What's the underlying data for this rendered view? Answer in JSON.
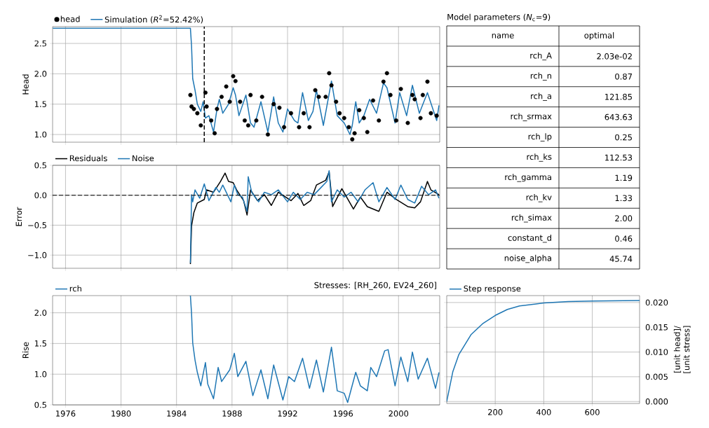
{
  "chart_data": [
    {
      "type": "line",
      "ylabel": "Head",
      "xlim": [
        "1975-01-26",
        "2002-12-20"
      ],
      "ylim": [
        0.873,
        2.777
      ],
      "xticks": [
        "1976",
        "1980",
        "1984",
        "1988",
        "1992",
        "1996",
        "2000"
      ],
      "yticks": [
        {
          "value": 1.0,
          "label": "1.0"
        },
        1.5,
        {
          "value": 2.0,
          "label": "2.0"
        },
        2.5
      ],
      "tick_labels": "y",
      "grid": true,
      "legend": "top left",
      "ref_lines": [
        {
          "axis": "x",
          "value": "1986-01",
          "color": "#000000",
          "line_style": "dashed"
        }
      ],
      "series": [
        {
          "name": "head",
          "type": "scatter",
          "color": "#000000",
          "x": [
            "1985-01",
            "1985-02",
            "1985-04",
            "1985-07",
            "1985-10",
            "1986-02",
            "1986-03",
            "1986-07",
            "1986-10",
            "1986-12",
            "1987-04",
            "1987-08",
            "1987-11",
            "1988-02",
            "1988-04",
            "1988-08",
            "1988-12",
            "1989-03",
            "1989-05",
            "1989-10",
            "1990-03",
            "1990-08",
            "1991-01",
            "1991-06",
            "1991-10",
            "1992-04",
            "1992-11",
            "1993-03",
            "1993-08",
            "1994-01",
            "1994-04",
            "1994-10",
            "1995-01",
            "1995-03",
            "1995-07",
            "1995-10",
            "1996-02",
            "1996-06",
            "1996-09",
            "1996-11",
            "1997-03",
            "1997-07",
            "1997-10",
            "1998-03",
            "1998-08",
            "1998-12",
            "1999-03",
            "1999-06",
            "1999-11",
            "2000-03",
            "2000-09",
            "2001-01",
            "2001-03",
            "2001-08",
            "2001-10",
            "2002-02",
            "2002-05",
            "2002-10"
          ],
          "values": [
            1.65,
            1.46,
            1.42,
            1.35,
            1.15,
            1.69,
            1.46,
            1.23,
            1.02,
            1.42,
            1.62,
            1.79,
            1.54,
            1.96,
            1.88,
            1.54,
            1.23,
            1.15,
            1.65,
            1.23,
            1.62,
            1.0,
            1.5,
            1.44,
            1.12,
            1.35,
            1.12,
            1.35,
            1.12,
            1.73,
            1.62,
            1.62,
            2.01,
            1.81,
            1.54,
            1.35,
            1.27,
            1.12,
            0.92,
            1.02,
            1.4,
            1.27,
            1.04,
            1.56,
            1.23,
            1.87,
            2.01,
            1.65,
            1.23,
            1.75,
            1.19,
            1.65,
            1.58,
            1.27,
            1.65,
            1.87,
            1.35,
            1.31
          ]
        },
        {
          "name": "Simulation (*R*$^{2}$=52.42%)",
          "color": "#1f77b4",
          "x": [
            "1975-02",
            "1985-01",
            "1985-02",
            "1985-03",
            "1985-05",
            "1985-07",
            "1985-10",
            "1985-12",
            "1986-02",
            "1986-05",
            "1986-09",
            "1986-12",
            "1987-02",
            "1987-05",
            "1987-10",
            "1988-02",
            "1988-04",
            "1988-07",
            "1989-01",
            "1989-05",
            "1989-08",
            "1990-02",
            "1990-08",
            "1991-01",
            "1991-05",
            "1991-09",
            "1992-01",
            "1992-07",
            "1992-10",
            "1993-02",
            "1993-07",
            "1993-11",
            "1994-02",
            "1994-08",
            "1995-03",
            "1995-08",
            "1996-02",
            "1996-07",
            "1996-09",
            "1996-12",
            "1997-03",
            "1997-07",
            "1997-12",
            "1998-06",
            "1998-12",
            "1999-03",
            "1999-10",
            "2000-02",
            "2000-08",
            "2001-01",
            "2001-07",
            "2002-02",
            "2002-10",
            "2002-12"
          ],
          "values": [
            2.75,
            2.75,
            2.46,
            1.92,
            1.73,
            1.5,
            1.38,
            1.54,
            1.27,
            1.31,
            1.04,
            1.42,
            1.58,
            1.35,
            1.5,
            1.77,
            1.65,
            1.31,
            1.65,
            1.19,
            1.12,
            1.54,
            1.04,
            1.62,
            1.19,
            1.04,
            1.42,
            1.23,
            1.19,
            1.69,
            1.23,
            1.38,
            1.73,
            1.15,
            1.88,
            1.31,
            1.19,
            1.0,
            1.15,
            1.54,
            1.19,
            1.31,
            1.58,
            1.35,
            1.85,
            1.77,
            1.19,
            1.69,
            1.31,
            1.81,
            1.35,
            1.69,
            1.23,
            1.48
          ]
        }
      ]
    },
    {
      "type": "other",
      "title": "Model parameters (*N*$_{c}$=9)",
      "annotations": [
        "name",
        "optimal"
      ],
      "categories": [
        "rch_A",
        "rch_n",
        "rch_a",
        "rch_srmax",
        "rch_lp",
        "rch_ks",
        "rch_gamma",
        "rch_kv",
        "rch_simax",
        "constant_d",
        "noise_alpha"
      ],
      "value_labels": [
        "2.03e-02",
        "0.87",
        "121.85",
        "643.63",
        "0.25",
        "112.53",
        "1.19",
        "1.33",
        "2.00",
        "0.46",
        "45.74"
      ]
    },
    {
      "type": "line",
      "ylabel": "Error",
      "xlim": [
        "1975-01-26",
        "2002-12-20"
      ],
      "ylim": [
        -1.22,
        0.5
      ],
      "xticks": [
        "1976",
        "1980",
        "1984",
        "1988",
        "1992",
        "1996",
        "2000"
      ],
      "yticks": [
        {
          "value": -1.0,
          "label": "−1.0"
        },
        {
          "value": -0.5,
          "label": "−0.5"
        },
        {
          "value": 0.0,
          "label": "0.0"
        },
        0.5
      ],
      "tick_labels": "y",
      "grid": true,
      "legend": "top left",
      "ref_lines": [
        {
          "axis": "y",
          "value": 0,
          "color": "#000000",
          "line_style": "dashed"
        }
      ],
      "series": [
        {
          "name": "Residuals",
          "color": "#000000",
          "x": [
            "1985-01",
            "1985-02",
            "1985-04",
            "1985-07",
            "1986-01",
            "1986-03",
            "1986-09",
            "1987-03",
            "1987-07",
            "1987-10",
            "1988-02",
            "1988-05",
            "1988-11",
            "1989-02",
            "1989-05",
            "1989-11",
            "1990-05",
            "1990-11",
            "1991-05",
            "1992-04",
            "1992-10",
            "1993-03",
            "1993-09",
            "1994-02",
            "1994-10",
            "1995-01",
            "1995-04",
            "1995-12",
            "1996-10",
            "1997-04",
            "1997-10",
            "1998-08",
            "1999-03",
            "1999-11",
            "2000-09",
            "2001-03",
            "2001-08",
            "2002-02",
            "2002-05",
            "2002-12"
          ],
          "values": [
            -1.15,
            -0.51,
            -0.29,
            -0.13,
            -0.07,
            0.09,
            0.05,
            0.23,
            0.37,
            0.23,
            0.21,
            0.09,
            -0.09,
            -0.33,
            0.09,
            -0.09,
            0.01,
            -0.17,
            0.05,
            -0.09,
            0.03,
            -0.17,
            -0.09,
            0.17,
            0.25,
            0.39,
            -0.19,
            0.11,
            -0.23,
            -0.03,
            -0.19,
            -0.27,
            0.05,
            -0.07,
            -0.19,
            -0.21,
            -0.11,
            0.23,
            0.09,
            0.01
          ]
        },
        {
          "name": "Noise",
          "color": "#1f77b4",
          "x": [
            "1985-01",
            "1985-02",
            "1985-03",
            "1985-05",
            "1985-09",
            "1986-01",
            "1986-05",
            "1986-11",
            "1987-02",
            "1987-05",
            "1987-09",
            "1987-12",
            "1988-03",
            "1988-06",
            "1988-10",
            "1989-02",
            "1989-03",
            "1989-06",
            "1989-12",
            "1990-05",
            "1990-11",
            "1991-05",
            "1992-01",
            "1992-06",
            "1992-12",
            "1993-06",
            "1993-12",
            "1994-06",
            "1994-11",
            "1995-01",
            "1995-03",
            "1995-08",
            "1996-02",
            "1996-08",
            "1997-02",
            "1997-08",
            "1998-03",
            "1998-08",
            "1999-03",
            "1999-10",
            "2000-03",
            "2000-09",
            "2001-03",
            "2001-09",
            "2002-03",
            "2002-09",
            "2002-12"
          ],
          "values": [
            -1.13,
            0.01,
            -0.11,
            0.09,
            -0.05,
            0.19,
            -0.09,
            0.13,
            0.05,
            0.17,
            0.01,
            -0.11,
            0.17,
            0.01,
            -0.03,
            -0.27,
            0.31,
            0.05,
            -0.11,
            0.05,
            0.01,
            0.09,
            -0.11,
            0.05,
            -0.07,
            0.05,
            0.01,
            0.13,
            0.23,
            0.41,
            -0.11,
            0.09,
            -0.03,
            0.05,
            -0.11,
            0.09,
            0.21,
            -0.11,
            0.13,
            -0.07,
            0.17,
            -0.07,
            -0.13,
            0.15,
            0.01,
            0.09,
            -0.05
          ]
        }
      ]
    },
    {
      "type": "line",
      "title": "Stresses: [RH_260, EV24_260]",
      "ylabel": "Rise",
      "xlim": [
        "1975-01-26",
        "2002-12-20"
      ],
      "ylim": [
        0.5,
        2.28
      ],
      "xticks": [
        "1976",
        "1980",
        "1984",
        "1988",
        "1992",
        "1996",
        "2000"
      ],
      "yticks": [
        0.5,
        {
          "value": 1.0,
          "label": "1.0"
        },
        1.5,
        {
          "value": 2.0,
          "label": "2.0"
        }
      ],
      "grid": true,
      "legend": "top left",
      "series": [
        {
          "name": "rch",
          "color": "#1f77b4",
          "x": [
            "1985-01",
            "1985-02",
            "1985-03",
            "1985-05",
            "1985-07",
            "1985-10",
            "1986-02",
            "1986-04",
            "1986-09",
            "1987-01",
            "1987-04",
            "1987-11",
            "1988-03",
            "1988-06",
            "1989-01",
            "1989-07",
            "1990-02",
            "1990-08",
            "1991-01",
            "1991-09",
            "1992-02",
            "1992-07",
            "1993-02",
            "1993-08",
            "1994-02",
            "1994-08",
            "1995-03",
            "1995-08",
            "1996-02",
            "1996-05",
            "1996-12",
            "1997-04",
            "1997-10",
            "1998-01",
            "1998-06",
            "1999-01",
            "1999-04",
            "1999-10",
            "2000-03",
            "2000-09",
            "2001-01",
            "2001-06",
            "2002-02",
            "2002-09",
            "2002-12"
          ],
          "values": [
            2.28,
            1.99,
            1.51,
            1.23,
            1.03,
            0.81,
            1.19,
            0.84,
            0.6,
            1.11,
            0.88,
            1.07,
            1.34,
            0.96,
            1.21,
            0.65,
            1.07,
            0.6,
            1.15,
            0.58,
            0.96,
            0.88,
            1.26,
            0.77,
            1.23,
            0.71,
            1.44,
            0.73,
            0.69,
            0.54,
            1.03,
            0.81,
            0.73,
            1.11,
            0.96,
            1.38,
            1.4,
            0.81,
            1.28,
            0.88,
            1.36,
            0.92,
            1.26,
            0.77,
            1.03
          ]
        }
      ]
    },
    {
      "type": "line",
      "ylabel": "[unit head]/ [unit stress]",
      "xlim": [
        0,
        795
      ],
      "ylim": [
        -0.0004,
        0.0214
      ],
      "xticks": [
        200,
        400,
        600
      ],
      "yticks": [
        {
          "value": 0,
          "label": "0.000"
        },
        {
          "value": 0.005,
          "label": "0.005"
        },
        {
          "value": 0.01,
          "label": "0.010"
        },
        {
          "value": 0.015,
          "label": "0.015"
        },
        {
          "value": 0.02,
          "label": "0.020"
        }
      ],
      "grid": true,
      "legend": "top left",
      "series": [
        {
          "name": "Step response",
          "color": "#1f77b4",
          "x": [
            0,
            25,
            50,
            100,
            150,
            200,
            250,
            300,
            400,
            500,
            600,
            795
          ],
          "values": [
            0,
            0.006,
            0.0095,
            0.0135,
            0.0158,
            0.0174,
            0.0186,
            0.0193,
            0.0199,
            0.0202,
            0.0203,
            0.0204
          ]
        }
      ]
    }
  ]
}
